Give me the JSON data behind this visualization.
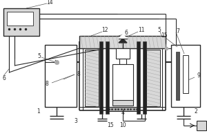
{
  "bg": "#ffffff",
  "lc": "#2a2a2a",
  "lg": "#d8d8d8",
  "mg": "#aaaaaa",
  "dg": "#555555",
  "blk": "#222222",
  "figsize": [
    3.0,
    2.0
  ],
  "dpi": 100
}
